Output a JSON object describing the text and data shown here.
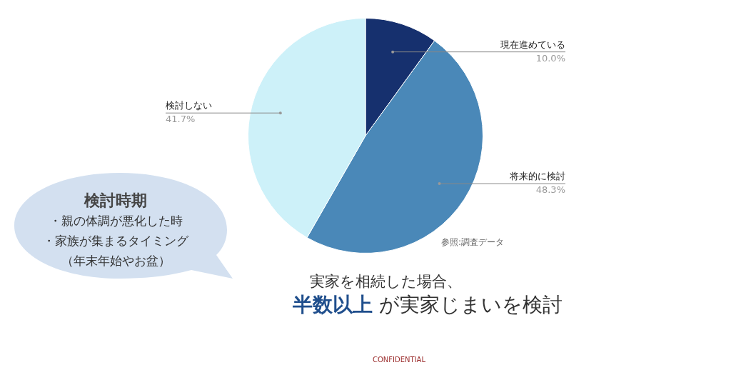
{
  "chart_data": {
    "type": "pie",
    "categories": [
      "現在進めている",
      "将来的に検討",
      "検討しない"
    ],
    "values": [
      10.0,
      48.3,
      41.7
    ],
    "value_labels": [
      "10.0%",
      "48.3%",
      "41.7%"
    ],
    "colors": [
      "#16306e",
      "#4a88b8",
      "#cdf1f9"
    ],
    "legend": false,
    "annotations": [
      "検討時期",
      "・親の体調が悪化した時",
      "・家族が集まるタイミング",
      "（年末年始やお盆）",
      "実家を相続した場合、",
      "半数以上",
      " が実家じまいを検討",
      "参照:調査データ",
      "CONFIDENTIAL"
    ]
  }
}
